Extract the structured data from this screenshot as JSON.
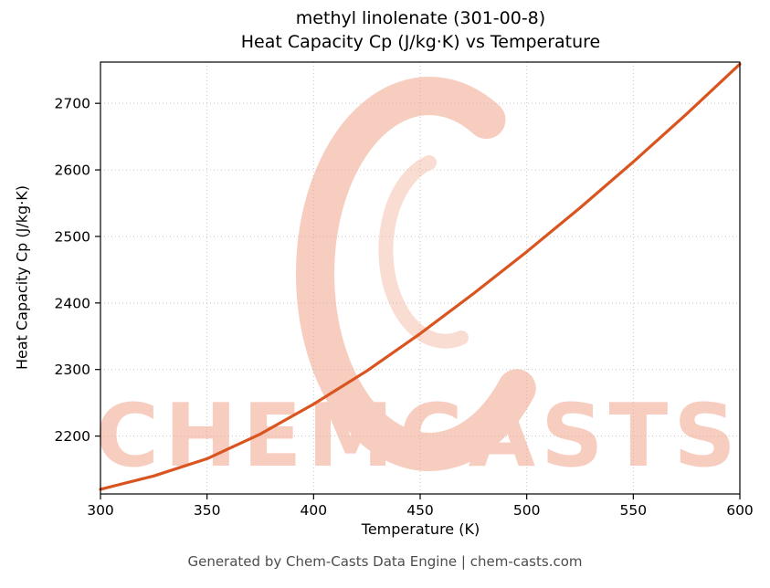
{
  "title": {
    "line1": "methyl linolenate (301-00-8)",
    "line2": "Heat Capacity Cp (J/kg·K) vs Temperature"
  },
  "axes": {
    "xlabel": "Temperature (K)",
    "ylabel": "Heat Capacity Cp (J/kg·K)"
  },
  "footer": {
    "text": "Generated by Chem-Casts Data Engine | chem-casts.com"
  },
  "watermark": {
    "text": "CHEMCASTS",
    "color": "#f0a58c",
    "opacity": 0.55
  },
  "chart_data": {
    "type": "line",
    "title": "methyl linolenate (301-00-8) — Heat Capacity Cp (J/kg·K) vs Temperature",
    "xlabel": "Temperature (K)",
    "ylabel": "Heat Capacity Cp (J/kg·K)",
    "xlim": [
      300,
      600
    ],
    "ylim": [
      2113,
      2762
    ],
    "x_ticks": [
      300,
      350,
      400,
      450,
      500,
      550,
      600
    ],
    "y_ticks": [
      2200,
      2300,
      2400,
      2500,
      2600,
      2700
    ],
    "grid": true,
    "legend": "none",
    "series": [
      {
        "name": "Heat Capacity Cp",
        "color": "#d9541f",
        "x": [
          300,
          325,
          350,
          375,
          400,
          425,
          450,
          475,
          500,
          525,
          550,
          575,
          600
        ],
        "y": [
          2120,
          2140,
          2166,
          2203,
          2248,
          2298,
          2354,
          2414,
          2477,
          2543,
          2612,
          2684,
          2759
        ]
      }
    ]
  }
}
